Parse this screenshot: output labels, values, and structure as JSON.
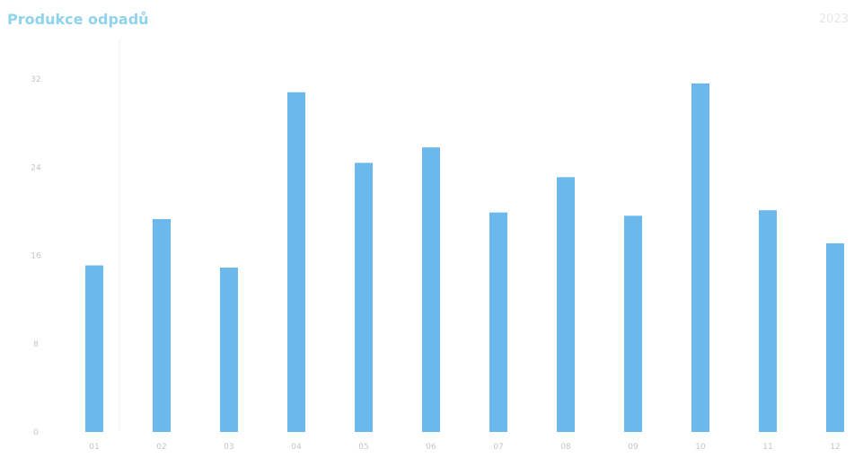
{
  "chart_data": {
    "type": "bar",
    "title": "Produkce odpadů",
    "subtitle": "2023",
    "categories": [
      "01",
      "02",
      "03",
      "04",
      "05",
      "06",
      "07",
      "08",
      "09",
      "10",
      "11",
      "12"
    ],
    "values": [
      15.1,
      19.3,
      14.9,
      30.8,
      24.4,
      25.8,
      19.9,
      23.1,
      19.6,
      31.6,
      20.1,
      17.1
    ],
    "ylim": [
      0,
      32
    ],
    "yticks": [
      0,
      8,
      16,
      24,
      32
    ],
    "grid": false,
    "colors": {
      "bar": "#6ab8ec",
      "title": "#8fd3ec"
    }
  }
}
